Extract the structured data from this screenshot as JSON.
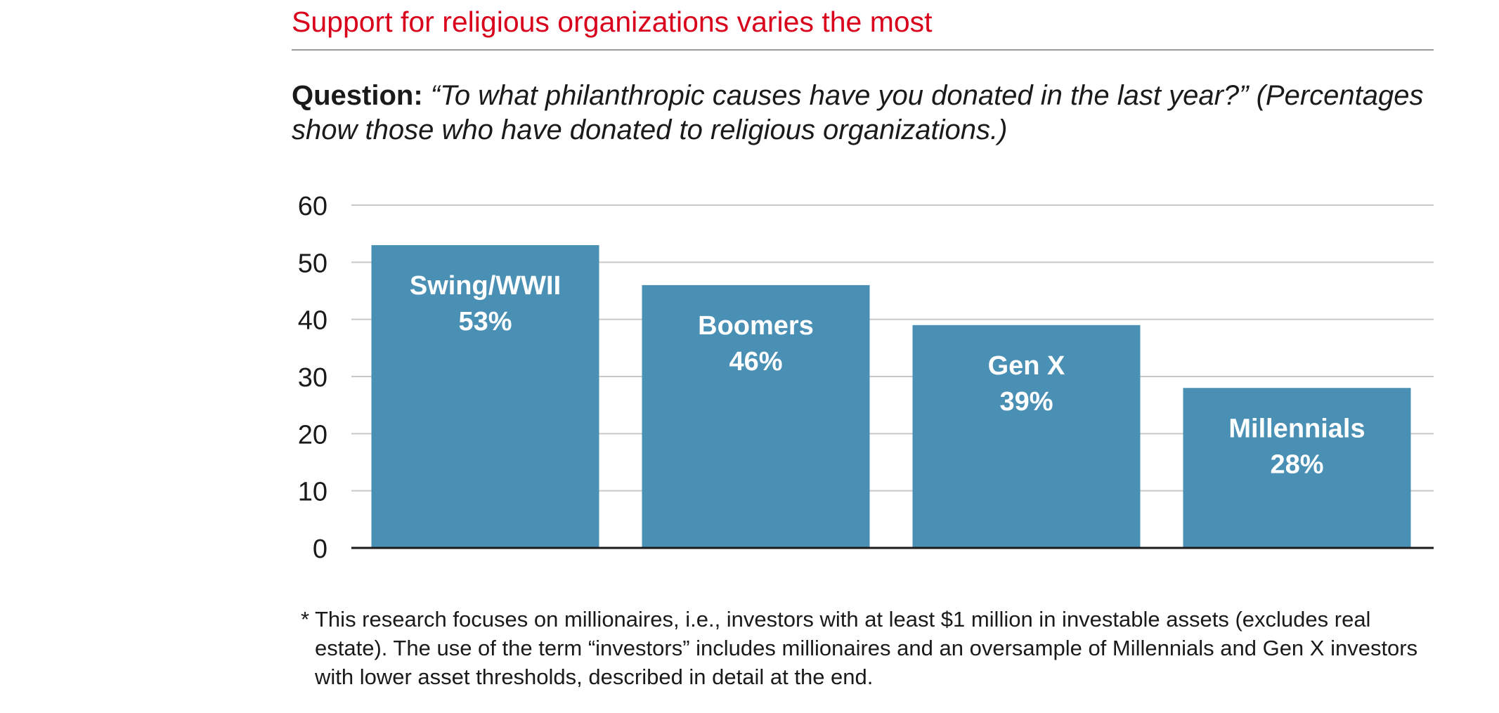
{
  "header": {
    "headline": "Support for religious organizations varies the most"
  },
  "question": {
    "label": "Question:",
    "text": "“To what philanthropic causes have you donated in the last year?” (Percentages show those who have donated to religious organizations.)"
  },
  "chart_data": {
    "type": "bar",
    "categories": [
      "Swing/WWII",
      "Boomers",
      "Gen X",
      "Millennials"
    ],
    "values": [
      53,
      46,
      39,
      28
    ],
    "data_labels": [
      "53%",
      "46%",
      "39%",
      "28%"
    ],
    "ylim": [
      0,
      60
    ],
    "y_ticks": [
      0,
      10,
      20,
      30,
      40,
      50,
      60
    ],
    "y_tick_labels": [
      "0",
      "10",
      "20",
      "30",
      "40",
      "50",
      "60"
    ],
    "grid": true,
    "bar_color": "#4a90b5",
    "grid_color": "#c8c8c8",
    "axis_color": "#1a1a1a",
    "label_color": "#ffffff"
  },
  "footnote": {
    "marker": "*",
    "text": "This research focuses on millionaires, i.e., investors with at least $1 million in investable assets (excludes real estate). The use of the term “investors” includes millionaires and an oversample of Millennials and Gen X investors with lower asset thresholds, described in detail at the end."
  }
}
